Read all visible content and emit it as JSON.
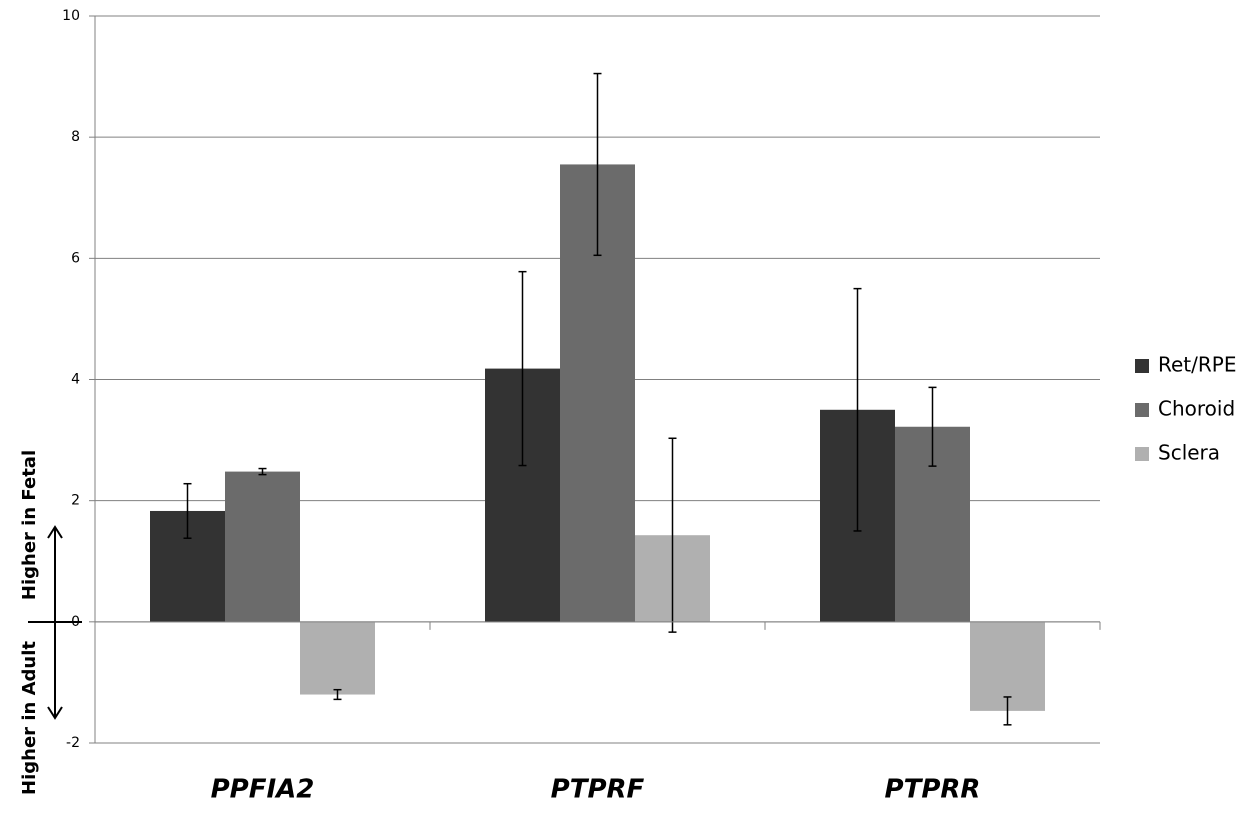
{
  "chart_data": {
    "type": "bar",
    "categories": [
      "PPFIA2",
      "PTPRF",
      "PTPRR"
    ],
    "series": [
      {
        "name": "Ret/RPE",
        "color": "#333333",
        "values": [
          1.83,
          4.18,
          3.5
        ],
        "errors": [
          0.45,
          1.6,
          2.0
        ]
      },
      {
        "name": "Choroid",
        "color": "#6b6b6b",
        "values": [
          2.48,
          7.55,
          3.22
        ],
        "errors": [
          0.05,
          1.5,
          0.65
        ]
      },
      {
        "name": "Sclera",
        "color": "#b0b0b0",
        "values": [
          -1.2,
          1.43,
          -1.47
        ],
        "errors": [
          0.08,
          1.6,
          0.23
        ]
      }
    ],
    "ylim": [
      -2,
      10
    ],
    "yticks": [
      -2,
      0,
      2,
      4,
      6,
      8,
      10
    ],
    "grid": true,
    "annotations": [
      "Higher in Fetal",
      "Higher in Adult"
    ],
    "legend": "right"
  }
}
